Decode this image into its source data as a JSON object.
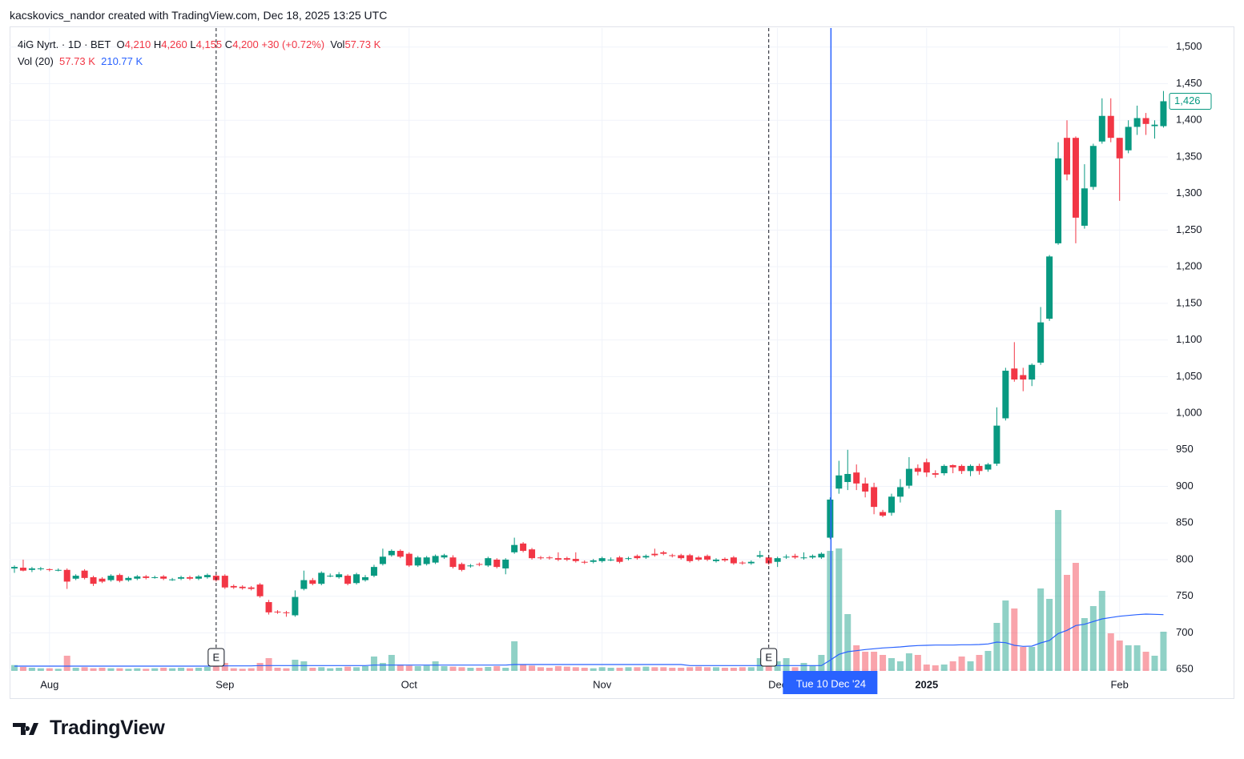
{
  "header": {
    "attribution": "kacskovics_nandor created with TradingView.com, Dec 18, 2025 13:25 UTC"
  },
  "footer": {
    "brand": "TradingView"
  },
  "chart_data": {
    "type": "candlestick",
    "legend": {
      "symbol": "4iG Nyrt. · 1D · BET",
      "ohlc": [
        {
          "label": "O",
          "value": "4,210"
        },
        {
          "label": "H",
          "value": "4,260"
        },
        {
          "label": "L",
          "value": "4,155"
        },
        {
          "label": "C",
          "value": "4,200"
        }
      ],
      "change": "+30 (+0.72%)",
      "vol_label": "Vol",
      "vol": "57.73 K",
      "indicator": "Vol (20)",
      "indicator_values": [
        "57.73 K",
        "210.77 K"
      ]
    },
    "categories": [
      null,
      null,
      null,
      null,
      "Aug",
      null,
      null,
      null,
      null,
      null,
      null,
      null,
      null,
      null,
      null,
      null,
      null,
      null,
      null,
      null,
      null,
      null,
      null,
      null,
      "Sep",
      null,
      null,
      null,
      null,
      null,
      null,
      null,
      null,
      null,
      null,
      null,
      null,
      null,
      null,
      null,
      null,
      null,
      null,
      null,
      null,
      "Oct",
      null,
      null,
      null,
      null,
      null,
      null,
      null,
      null,
      null,
      null,
      null,
      null,
      null,
      null,
      null,
      null,
      null,
      null,
      null,
      null,
      null,
      "Nov",
      null,
      null,
      null,
      null,
      null,
      null,
      null,
      null,
      null,
      null,
      null,
      null,
      null,
      null,
      null,
      null,
      null,
      null,
      null,
      "Dec",
      null,
      null,
      null,
      null,
      null,
      null,
      null,
      null,
      null,
      null,
      null,
      null,
      null,
      null,
      null,
      null,
      "2025",
      null,
      null,
      null,
      null,
      null,
      null,
      null,
      null,
      null,
      null,
      null,
      null,
      null,
      null,
      null,
      null,
      null,
      null,
      null,
      null,
      null,
      "Feb",
      null,
      null,
      null,
      null,
      null
    ],
    "open": [
      788,
      789,
      786,
      787,
      787,
      786,
      786,
      774,
      785,
      776,
      774,
      772,
      779,
      772,
      774,
      777,
      776,
      777,
      773,
      774,
      776,
      774,
      776,
      778,
      778,
      764,
      763,
      762,
      766,
      742,
      729,
      728,
      724,
      760,
      772,
      767,
      778,
      776,
      778,
      768,
      772,
      778,
      794,
      806,
      812,
      808,
      792,
      794,
      796,
      803,
      803,
      794,
      791,
      794,
      792,
      800,
      788,
      810,
      822,
      814,
      803,
      803,
      802,
      802,
      801,
      797,
      797,
      798,
      800,
      803,
      801,
      805,
      803,
      808,
      810,
      806,
      806,
      806,
      803,
      805,
      798,
      801,
      803,
      796,
      795,
      804,
      803,
      797,
      803,
      805,
      802,
      803,
      803,
      830,
      897,
      906,
      919,
      904,
      899,
      865,
      864,
      886,
      901,
      925,
      933,
      918,
      918,
      929,
      928,
      921,
      928,
      923,
      931,
      993,
      1061,
      1052,
      1046,
      1069,
      1129,
      1232,
      1376,
      1376,
      1256,
      1309,
      1371,
      1406,
      1376,
      1359,
      1391,
      1403,
      1392,
      1392
    ],
    "high": [
      792,
      800,
      790,
      790,
      788,
      788,
      788,
      780,
      787,
      778,
      776,
      780,
      781,
      777,
      779,
      779,
      778,
      779,
      775,
      778,
      778,
      779,
      781,
      780,
      780,
      766,
      765,
      764,
      768,
      745,
      731,
      730,
      758,
      785,
      775,
      784,
      781,
      783,
      780,
      782,
      779,
      793,
      815,
      814,
      814,
      810,
      805,
      805,
      807,
      808,
      806,
      796,
      794,
      796,
      804,
      802,
      802,
      830,
      824,
      816,
      805,
      805,
      810,
      804,
      810,
      799,
      801,
      804,
      803,
      805,
      804,
      807,
      807,
      815,
      812,
      808,
      808,
      808,
      805,
      807,
      802,
      803,
      805,
      798,
      799,
      812,
      806,
      804,
      807,
      808,
      810,
      807,
      810,
      885,
      935,
      950,
      930,
      912,
      905,
      868,
      890,
      910,
      940,
      930,
      938,
      922,
      930,
      930,
      930,
      930,
      931,
      932,
      1008,
      1062,
      1097,
      1062,
      1068,
      1145,
      1216,
      1370,
      1400,
      1378,
      1340,
      1368,
      1430,
      1430,
      1376,
      1400,
      1420,
      1410,
      1400,
      1440
    ],
    "low": [
      782,
      784,
      783,
      785,
      784,
      784,
      760,
      772,
      773,
      764,
      768,
      770,
      769,
      770,
      772,
      773,
      774,
      772,
      771,
      772,
      772,
      772,
      774,
      770,
      760,
      760,
      759,
      758,
      748,
      725,
      726,
      722,
      722,
      758,
      765,
      765,
      776,
      774,
      765,
      766,
      770,
      776,
      792,
      804,
      802,
      790,
      790,
      792,
      794,
      801,
      788,
      784,
      789,
      791,
      790,
      788,
      780,
      808,
      810,
      800,
      800,
      800,
      798,
      798,
      796,
      794,
      795,
      796,
      798,
      795,
      799,
      800,
      801,
      804,
      806,
      803,
      800,
      796,
      798,
      798,
      796,
      797,
      793,
      793,
      793,
      802,
      793,
      790,
      801,
      801,
      800,
      801,
      801,
      828,
      890,
      895,
      895,
      885,
      862,
      858,
      860,
      878,
      897,
      915,
      913,
      912,
      915,
      918,
      917,
      914,
      916,
      920,
      928,
      990,
      1043,
      1030,
      1037,
      1066,
      1126,
      1230,
      1318,
      1232,
      1252,
      1305,
      1368,
      1370,
      1290,
      1355,
      1380,
      1380,
      1375,
      1390
    ],
    "close": [
      790,
      785,
      788,
      788,
      786,
      786,
      770,
      778,
      775,
      767,
      770,
      778,
      771,
      775,
      777,
      775,
      776,
      774,
      773,
      776,
      774,
      777,
      779,
      772,
      762,
      762,
      761,
      760,
      750,
      728,
      728,
      727,
      749,
      772,
      767,
      782,
      778,
      780,
      767,
      780,
      776,
      790,
      804,
      812,
      804,
      792,
      803,
      803,
      805,
      806,
      790,
      786,
      792,
      793,
      802,
      790,
      800,
      820,
      812,
      802,
      802,
      802,
      800,
      800,
      798,
      796,
      799,
      802,
      800,
      797,
      802,
      802,
      805,
      806,
      808,
      805,
      802,
      798,
      800,
      800,
      800,
      799,
      795,
      795,
      797,
      806,
      795,
      802,
      804,
      803,
      803,
      805,
      808,
      882,
      915,
      917,
      904,
      893,
      872,
      860,
      886,
      899,
      924,
      920,
      919,
      916,
      928,
      926,
      921,
      928,
      921,
      930,
      983,
      1058,
      1046,
      1046,
      1066,
      1124,
      1214,
      1348,
      1326,
      1267,
      1307,
      1365,
      1406,
      1376,
      1348,
      1391,
      1403,
      1395,
      1394,
      1426
    ],
    "volume": [
      22,
      15,
      12,
      10,
      10,
      8,
      57,
      12,
      14,
      10,
      12,
      10,
      10,
      8,
      10,
      8,
      10,
      12,
      10,
      12,
      10,
      12,
      15,
      18,
      30,
      10,
      8,
      10,
      30,
      48,
      12,
      10,
      42,
      36,
      12,
      14,
      10,
      12,
      16,
      14,
      18,
      54,
      30,
      60,
      24,
      20,
      18,
      20,
      36,
      18,
      16,
      14,
      12,
      12,
      15,
      18,
      12,
      111,
      24,
      20,
      14,
      12,
      18,
      16,
      14,
      12,
      10,
      14,
      12,
      12,
      14,
      14,
      16,
      14,
      14,
      12,
      12,
      14,
      16,
      14,
      14,
      12,
      12,
      14,
      14,
      48,
      20,
      36,
      48,
      14,
      30,
      20,
      60,
      450,
      459,
      213,
      96,
      72,
      72,
      60,
      48,
      36,
      66,
      60,
      24,
      21,
      24,
      36,
      54,
      36,
      60,
      75,
      180,
      264,
      234,
      90,
      90,
      309,
      270,
      603,
      360,
      405,
      198,
      243,
      300,
      141,
      114,
      96,
      96,
      72,
      57,
      147
    ],
    "volume_ma": [
      18,
      18,
      18,
      18,
      18,
      18,
      18,
      18,
      18,
      18,
      18,
      18,
      18,
      18,
      18,
      18,
      18,
      18,
      18,
      18,
      18,
      18,
      18,
      18,
      19,
      19,
      19,
      19,
      20,
      20,
      20,
      20,
      20,
      20,
      20,
      20,
      20,
      20,
      20,
      20,
      20,
      22,
      22,
      22,
      22,
      22,
      22,
      22,
      22,
      22,
      22,
      22,
      22,
      22,
      22,
      22,
      22,
      24,
      24,
      24,
      24,
      24,
      24,
      24,
      24,
      24,
      24,
      24,
      24,
      24,
      24,
      24,
      24,
      24,
      24,
      24,
      24,
      20,
      20,
      20,
      20,
      20,
      20,
      20,
      20,
      20,
      20,
      20,
      20,
      20,
      20,
      20,
      20,
      40,
      62,
      72,
      76,
      80,
      83,
      86,
      88,
      90,
      93,
      95,
      96,
      97,
      97,
      97,
      98,
      98,
      99,
      101,
      108,
      106,
      96,
      92,
      93,
      105,
      114,
      140,
      152,
      170,
      175,
      185,
      195,
      200,
      205,
      208,
      211,
      213,
      212,
      211
    ],
    "event_labels": [
      null,
      null,
      null,
      null,
      null,
      null,
      null,
      null,
      null,
      null,
      null,
      null,
      null,
      null,
      null,
      null,
      null,
      null,
      null,
      null,
      null,
      null,
      null,
      "E",
      null,
      null,
      null,
      null,
      null,
      null,
      null,
      null,
      null,
      null,
      null,
      null,
      null,
      null,
      null,
      null,
      null,
      null,
      null,
      null,
      null,
      null,
      null,
      null,
      null,
      null,
      null,
      null,
      null,
      null,
      null,
      null,
      null,
      null,
      null,
      null,
      null,
      null,
      null,
      null,
      null,
      null,
      null,
      null,
      null,
      null,
      null,
      null,
      null,
      null,
      null,
      null,
      null,
      null,
      null,
      null,
      null,
      null,
      null,
      null,
      null,
      null,
      "E",
      null,
      null,
      null,
      null,
      null,
      null,
      null,
      null,
      null,
      null,
      null,
      null,
      null,
      null,
      null,
      null,
      null,
      null,
      null,
      null,
      null,
      null,
      null,
      null,
      null,
      null,
      null,
      null,
      null,
      null,
      null,
      null,
      null,
      null,
      null,
      null,
      null,
      null,
      null,
      null,
      null,
      null,
      null,
      null,
      null
    ],
    "crosshair_labels": [
      null,
      null,
      null,
      null,
      null,
      null,
      null,
      null,
      null,
      null,
      null,
      null,
      null,
      null,
      null,
      null,
      null,
      null,
      null,
      null,
      null,
      null,
      null,
      null,
      null,
      null,
      null,
      null,
      null,
      null,
      null,
      null,
      null,
      null,
      null,
      null,
      null,
      null,
      null,
      null,
      null,
      null,
      null,
      null,
      null,
      null,
      null,
      null,
      null,
      null,
      null,
      null,
      null,
      null,
      null,
      null,
      null,
      null,
      null,
      null,
      null,
      null,
      null,
      null,
      null,
      null,
      null,
      null,
      null,
      null,
      null,
      null,
      null,
      null,
      null,
      null,
      null,
      null,
      null,
      null,
      null,
      null,
      null,
      null,
      null,
      null,
      null,
      null,
      null,
      null,
      null,
      null,
      null,
      "Tue 10 Dec '24",
      null,
      null,
      null,
      null,
      null,
      null,
      null,
      null,
      null,
      null,
      null,
      null,
      null,
      null,
      null,
      null,
      null,
      null,
      null,
      null,
      null,
      null,
      null,
      null,
      null,
      null,
      null,
      null,
      null,
      null,
      null,
      null,
      null,
      null,
      null,
      null,
      null,
      null
    ],
    "ylim": [
      648,
      1526
    ],
    "yticks": [
      650,
      700,
      750,
      800,
      850,
      900,
      950,
      {
        "value": 1000,
        "label": "1,000"
      },
      {
        "value": 1050,
        "label": "1,050"
      },
      {
        "value": 1100,
        "label": "1,100"
      },
      {
        "value": 1150,
        "label": "1,150"
      },
      {
        "value": 1200,
        "label": "1,200"
      },
      {
        "value": 1250,
        "label": "1,250"
      },
      {
        "value": 1300,
        "label": "1,300"
      },
      {
        "value": 1350,
        "label": "1,350"
      },
      {
        "value": 1400,
        "label": "1,400"
      },
      {
        "value": 1450,
        "label": "1,450"
      },
      {
        "value": 1500,
        "label": "1,500"
      }
    ],
    "last_price": {
      "value": 1426,
      "label": "1,426"
    },
    "grid": true,
    "colors": {
      "up": "#089981",
      "down": "#f23645",
      "volume_up": "rgba(8,153,129,0.45)",
      "volume_down": "rgba(242,54,69,0.45)",
      "ma": "#2962ff",
      "crosshair": "#2962ff"
    }
  }
}
